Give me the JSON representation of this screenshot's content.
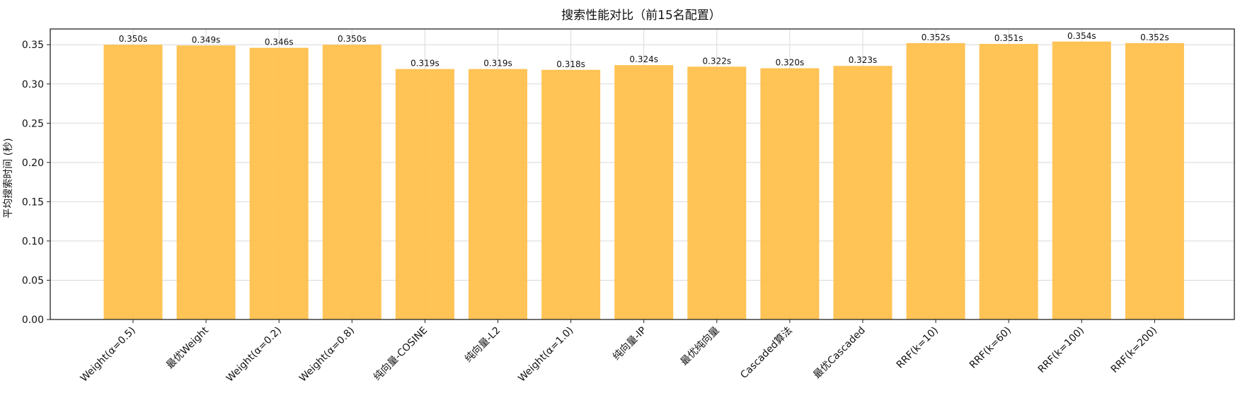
{
  "chart_data": {
    "type": "bar",
    "title": "搜索性能对比（前15名配置）",
    "xlabel": "",
    "ylabel": "平均搜索时间 (秒)",
    "ylim": [
      0,
      0.37
    ],
    "yticks": [
      "0.00",
      "0.05",
      "0.10",
      "0.15",
      "0.20",
      "0.25",
      "0.30",
      "0.35"
    ],
    "ytick_values": [
      0,
      0.05,
      0.1,
      0.15,
      0.2,
      0.25,
      0.3,
      0.35
    ],
    "grid": true,
    "bar_color": "#FFC04D",
    "categories": [
      "Weight(α=0.5)",
      "最优Weight",
      "Weight(α=0.2)",
      "Weight(α=0.8)",
      "纯向量-COSINE",
      "纯向量-L2",
      "Weight(α=1.0)",
      "纯向量-IP",
      "最优纯向量",
      "Cascaded算法",
      "最优Cascaded",
      "RRF(k=10)",
      "RRF(k=60)",
      "RRF(k=100)",
      "RRF(k=200)"
    ],
    "values": [
      0.35,
      0.349,
      0.346,
      0.35,
      0.319,
      0.319,
      0.318,
      0.324,
      0.322,
      0.32,
      0.323,
      0.352,
      0.351,
      0.354,
      0.352
    ],
    "data_labels": [
      "0.350s",
      "0.349s",
      "0.346s",
      "0.350s",
      "0.319s",
      "0.319s",
      "0.318s",
      "0.324s",
      "0.322s",
      "0.320s",
      "0.323s",
      "0.352s",
      "0.351s",
      "0.354s",
      "0.352s"
    ]
  }
}
